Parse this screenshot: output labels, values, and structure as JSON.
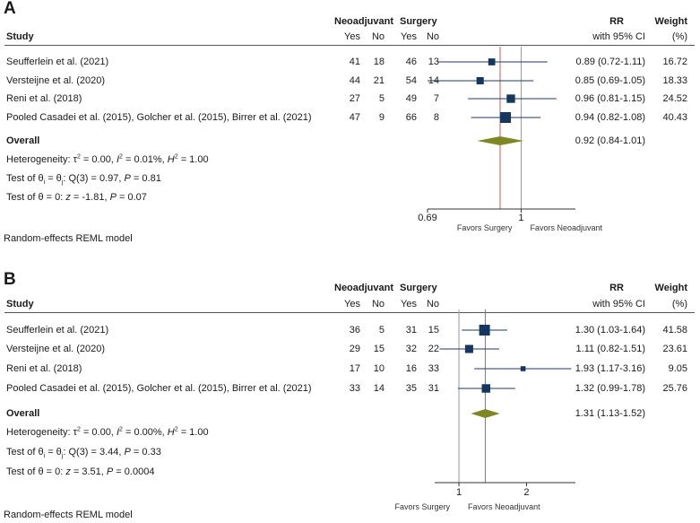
{
  "panels": [
    {
      "letter": "A",
      "header": {
        "study": "Study",
        "neo": "Neoadjuvant",
        "surgery": "Surgery",
        "yes": "Yes",
        "no": "No",
        "rr": "RR",
        "ci": "with 95% CI",
        "weight": "Weight",
        "pct": "(%)"
      },
      "studies": [
        {
          "name": "Seufferlein et al. (2021)",
          "neo_yes": "41",
          "neo_no": "18",
          "surg_yes": "46",
          "surg_no": "13",
          "rr_text": "0.89 (0.72-1.11)",
          "weight_text": "16.72",
          "rr": 0.89,
          "lo": 0.72,
          "hi": 1.11,
          "weight": 16.72
        },
        {
          "name": "Versteijne et al. (2020)",
          "neo_yes": "44",
          "neo_no": "21",
          "surg_yes": "54",
          "surg_no": "14",
          "rr_text": "0.85 (0.69-1.05)",
          "weight_text": "18.33",
          "rr": 0.85,
          "lo": 0.69,
          "hi": 1.05,
          "weight": 18.33
        },
        {
          "name": "Reni et al. (2018)",
          "neo_yes": "27",
          "neo_no": "5",
          "surg_yes": "49",
          "surg_no": "7",
          "rr_text": "0.96 (0.81-1.15)",
          "weight_text": "24.52",
          "rr": 0.96,
          "lo": 0.81,
          "hi": 1.15,
          "weight": 24.52
        },
        {
          "name": "Pooled  Casadei et al. (2015), Golcher et al. (2015), Birrer et al. (2021)",
          "neo_yes": "47",
          "neo_no": "9",
          "surg_yes": "66",
          "surg_no": "8",
          "rr_text": "0.94 (0.82-1.08)",
          "weight_text": "40.43",
          "rr": 0.94,
          "lo": 0.82,
          "hi": 1.08,
          "weight": 40.43
        }
      ],
      "overall": {
        "label": "Overall",
        "rr_text": "0.92 (0.84-1.01)",
        "rr": 0.92,
        "lo": 0.84,
        "hi": 1.01
      },
      "stats": {
        "het_prefix": "Heterogeneity: τ",
        "het_tau": "= 0.00, ",
        "het_i": "= 0.01%, ",
        "het_h": "= 1.00",
        "q_prefix": "Test of θ",
        "q_mid": " = θ",
        "q_value": ": Q(3) = 0.97, ",
        "q_p": " = 0.81",
        "z_prefix": "Test of θ = 0: ",
        "z_value": " = -1.81, ",
        "z_p": " = 0.07"
      },
      "axis": {
        "min": 0.69,
        "max": 1.24,
        "tick_labels": [
          "0.69",
          "1"
        ],
        "tick_values": [
          0.69,
          1
        ]
      },
      "favors_left": "Favors Surgery",
      "favors_right": "Favors Neoadjuvant",
      "model": "Random-effects REML model"
    },
    {
      "letter": "B",
      "header": {
        "study": "Study",
        "neo": "Neoadjuvant",
        "surgery": "Surgery",
        "yes": "Yes",
        "no": "No",
        "rr": "RR",
        "ci": "with 95% CI",
        "weight": "Weight",
        "pct": "(%)"
      },
      "studies": [
        {
          "name": "Seufferlein et al. (2021)",
          "neo_yes": "36",
          "neo_no": "5",
          "surg_yes": "31",
          "surg_no": "15",
          "rr_text": "1.30 (1.03-1.64)",
          "weight_text": "41.58",
          "rr": 1.3,
          "lo": 1.03,
          "hi": 1.64,
          "weight": 41.58
        },
        {
          "name": "Versteijne et al. (2020)",
          "neo_yes": "29",
          "neo_no": "15",
          "surg_yes": "32",
          "surg_no": "22",
          "rr_text": "1.11 (0.82-1.51)",
          "weight_text": "23.61",
          "rr": 1.11,
          "lo": 0.82,
          "hi": 1.51,
          "weight": 23.61
        },
        {
          "name": "Reni et al. (2018)",
          "neo_yes": "17",
          "neo_no": "10",
          "surg_yes": "16",
          "surg_no": "33",
          "rr_text": "1.93 (1.17-3.16)",
          "weight_text": "9.05",
          "rr": 1.93,
          "lo": 1.17,
          "hi": 3.16,
          "weight": 9.05
        },
        {
          "name": "Pooled  Casadei et al. (2015), Golcher et al. (2015), Birrer et al. (2021)",
          "neo_yes": "33",
          "neo_no": "14",
          "surg_yes": "35",
          "surg_no": "31",
          "rr_text": "1.32 (0.99-1.78)",
          "weight_text": "25.76",
          "rr": 1.32,
          "lo": 0.99,
          "hi": 1.78,
          "weight": 25.76
        }
      ],
      "overall": {
        "label": "Overall",
        "rr_text": "1.31 (1.13-1.52)",
        "rr": 1.31,
        "lo": 1.13,
        "hi": 1.52
      },
      "stats": {
        "het_prefix": "Heterogeneity: τ",
        "het_tau": "= 0.00, ",
        "het_i": "= 0.00%, ",
        "het_h": "= 1.00",
        "q_prefix": "Test of θ",
        "q_mid": " = θ",
        "q_value": ": Q(3) = 3.44, ",
        "q_p": " = 0.33",
        "z_prefix": "Test of θ = 0: ",
        "z_value": " = 3.51, ",
        "z_p": " = 0.0004"
      },
      "axis": {
        "min": 0.78,
        "max": 3.3,
        "tick_labels": [
          "1",
          "2"
        ],
        "tick_values": [
          1,
          2
        ]
      },
      "favors_left": "Favors Surgery",
      "favors_right": "Favors Neoadjuvant",
      "model": "Random-effects REML model"
    }
  ],
  "chart_data": [
    {
      "type": "forest",
      "title": "A",
      "xlabel": "RR with 95% CI",
      "scale": "log",
      "xlim": [
        0.69,
        1.24
      ],
      "reference_line": 1,
      "categories": [
        "Seufferlein et al. (2021)",
        "Versteijne et al. (2020)",
        "Reni et al. (2018)",
        "Pooled Casadei et al. (2015), Golcher et al. (2015), Birrer et al. (2021)",
        "Overall"
      ],
      "series": [
        {
          "name": "RR",
          "values": [
            0.89,
            0.85,
            0.96,
            0.94,
            0.92
          ]
        },
        {
          "name": "CI lower",
          "values": [
            0.72,
            0.69,
            0.81,
            0.82,
            0.84
          ]
        },
        {
          "name": "CI upper",
          "values": [
            1.11,
            1.05,
            1.15,
            1.08,
            1.01
          ]
        },
        {
          "name": "Weight (%)",
          "values": [
            16.72,
            18.33,
            24.52,
            40.43,
            null
          ]
        }
      ]
    },
    {
      "type": "forest",
      "title": "B",
      "xlabel": "RR with 95% CI",
      "scale": "log",
      "xlim": [
        0.78,
        3.3
      ],
      "reference_line": 1,
      "categories": [
        "Seufferlein et al. (2021)",
        "Versteijne et al. (2020)",
        "Reni et al. (2018)",
        "Pooled Casadei et al. (2015), Golcher et al. (2015), Birrer et al. (2021)",
        "Overall"
      ],
      "series": [
        {
          "name": "RR",
          "values": [
            1.3,
            1.11,
            1.93,
            1.32,
            1.31
          ]
        },
        {
          "name": "CI lower",
          "values": [
            1.03,
            0.82,
            1.17,
            0.99,
            1.13
          ]
        },
        {
          "name": "CI upper",
          "values": [
            1.64,
            1.51,
            3.16,
            1.78,
            1.52
          ]
        },
        {
          "name": "Weight (%)",
          "values": [
            41.58,
            23.61,
            9.05,
            25.76,
            null
          ]
        }
      ]
    }
  ]
}
